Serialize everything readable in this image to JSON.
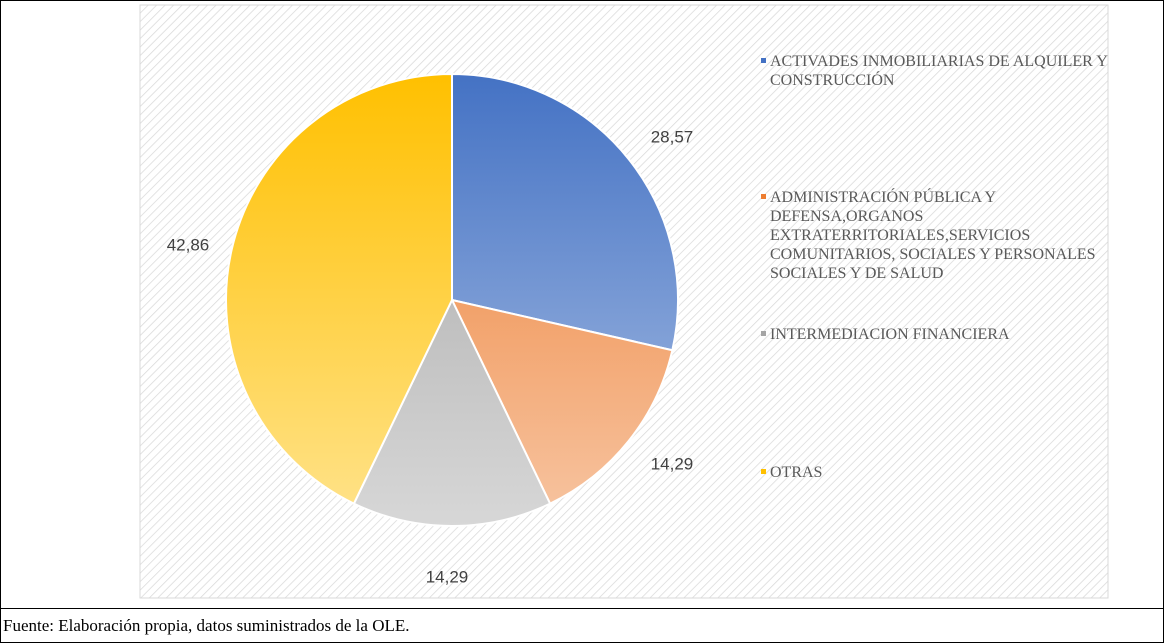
{
  "chart_data": {
    "type": "pie",
    "categories": [
      "ACTIVADES INMOBILIARIAS DE ALQUILER Y CONSTRUCCIÓN",
      "ADMINISTRACIÓN PÚBLICA Y DEFENSA,ORGANOS EXTRATERRITORIALES,SERVICIOS COMUNITARIOS, SOCIALES Y PERSONALES SOCIALES Y DE SALUD",
      "INTERMEDIACION FINANCIERA",
      "OTRAS"
    ],
    "values": [
      28.57,
      14.29,
      14.29,
      42.86
    ],
    "value_labels": [
      "28,57",
      "14,29",
      "14,29",
      "42,86"
    ],
    "colors": [
      "#4472c4",
      "#ed7d31",
      "#a5a5a5",
      "#ffc000"
    ],
    "legend": "right"
  },
  "caption": "Fuente: Elaboración propia, datos suministrados de la OLE."
}
